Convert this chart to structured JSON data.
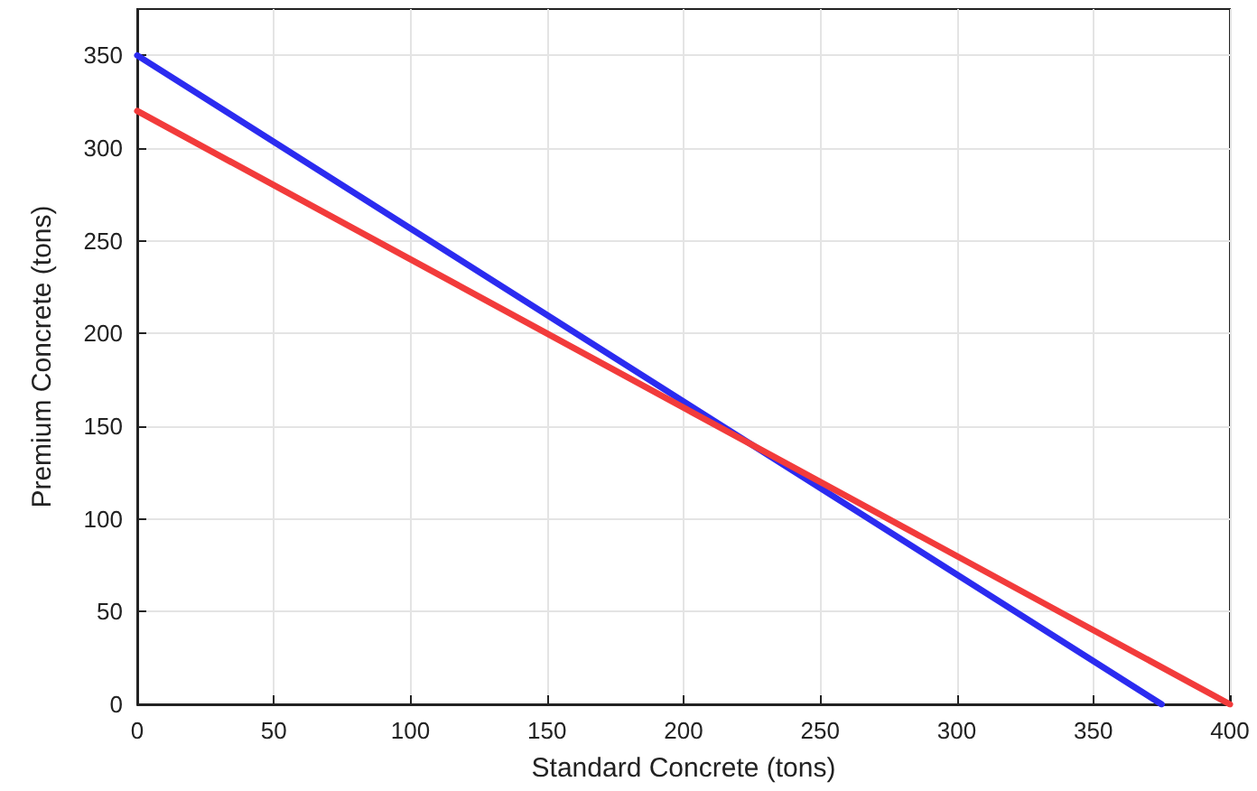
{
  "chart_data": {
    "type": "line",
    "xlabel": "Standard Concrete (tons)",
    "ylabel": "Premium Concrete (tons)",
    "xlim": [
      0,
      400
    ],
    "xticks": [
      0,
      50,
      100,
      150,
      200,
      250,
      300,
      350,
      400
    ],
    "ylim": [
      0,
      375
    ],
    "yticks": [
      0,
      50,
      100,
      150,
      200,
      250,
      300,
      350
    ],
    "grid": true,
    "marker": "none",
    "line_style": "solid",
    "series": [
      {
        "color": "#2b2bf0",
        "x": [
          0,
          375
        ],
        "values": [
          350,
          0
        ]
      },
      {
        "color": "#f23b3b",
        "x": [
          0,
          400
        ],
        "values": [
          320,
          0
        ]
      }
    ]
  }
}
